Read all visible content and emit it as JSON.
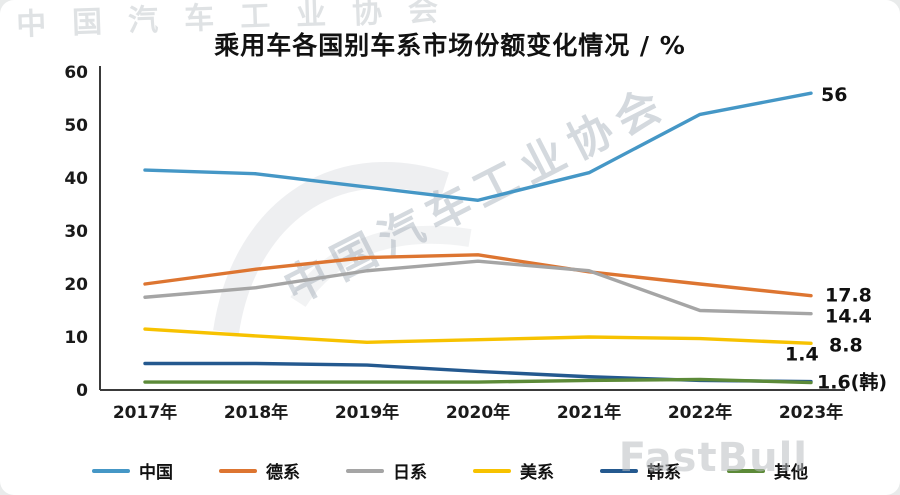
{
  "watermarks": {
    "assoc": "中国汽车工业协会",
    "brand": "FastBull"
  },
  "chart_data": {
    "type": "line",
    "title": "乘用车各国别车系市场份额变化情况 / %",
    "xlabel": "",
    "ylabel": "",
    "ylim": [
      0,
      60
    ],
    "yticks": [
      0,
      10,
      20,
      30,
      40,
      50,
      60
    ],
    "grid": false,
    "legend_position": "bottom",
    "categories": [
      "2017年",
      "2018年",
      "2019年",
      "2020年",
      "2021年",
      "2022年",
      "2023年"
    ],
    "series": [
      {
        "name": "中国",
        "color": "#4597c6",
        "values": [
          41.5,
          40.8,
          38.3,
          35.8,
          41.0,
          52.0,
          56.0
        ],
        "end_label": "56"
      },
      {
        "name": "德系",
        "color": "#dd7531",
        "values": [
          20.0,
          22.8,
          25.0,
          25.5,
          22.3,
          20.0,
          17.8
        ],
        "end_label": "17.8"
      },
      {
        "name": "日系",
        "color": "#a5a5a5",
        "values": [
          17.5,
          19.3,
          22.5,
          24.3,
          22.5,
          15.0,
          14.4
        ],
        "end_label": "14.4"
      },
      {
        "name": "美系",
        "color": "#f7c200",
        "values": [
          11.5,
          10.2,
          9.0,
          9.5,
          10.0,
          9.7,
          8.8
        ],
        "end_label": "8.8"
      },
      {
        "name": "韩系",
        "color": "#24598f",
        "values": [
          5.0,
          5.0,
          4.7,
          3.5,
          2.5,
          1.8,
          1.6
        ],
        "end_label": "1.6(韩)"
      },
      {
        "name": "其他",
        "color": "#5c8a38",
        "values": [
          1.5,
          1.5,
          1.5,
          1.5,
          1.8,
          2.0,
          1.4
        ],
        "end_label": "1.4"
      }
    ]
  }
}
